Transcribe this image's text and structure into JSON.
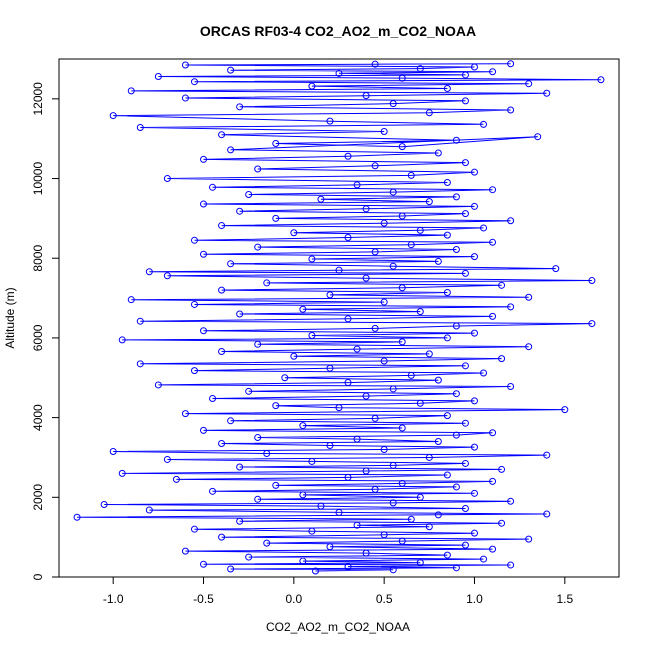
{
  "chart_data": {
    "type": "line",
    "title": "ORCAS RF03-4 CO2_AO2_m_CO2_NOAA",
    "xlabel": "CO2_AO2_m_CO2_NOAA",
    "ylabel": "Altitude (m)",
    "xlim": [
      -1.3,
      1.8
    ],
    "ylim": [
      0,
      13000
    ],
    "xticks": [
      -1.0,
      -0.5,
      0.0,
      0.5,
      1.0,
      1.5
    ],
    "xtick_labels": [
      "-1.0",
      "-0.5",
      "0.0",
      "0.5",
      "1.0",
      "1.5"
    ],
    "yticks": [
      0,
      2000,
      4000,
      6000,
      8000,
      10000,
      12000
    ],
    "ytick_labels": [
      "0",
      "2000",
      "4000",
      "6000",
      "8000",
      "10000",
      "12000"
    ],
    "grid": false,
    "marker": "open-circle",
    "series": [
      {
        "color": "#0000ff",
        "points": [
          [
            0.12,
            150
          ],
          [
            0.55,
            180
          ],
          [
            -0.35,
            200
          ],
          [
            0.9,
            230
          ],
          [
            0.3,
            260
          ],
          [
            1.2,
            300
          ],
          [
            -0.5,
            320
          ],
          [
            0.7,
            360
          ],
          [
            0.05,
            400
          ],
          [
            1.05,
            450
          ],
          [
            -0.25,
            500
          ],
          [
            0.85,
            550
          ],
          [
            0.4,
            600
          ],
          [
            -0.6,
            650
          ],
          [
            1.1,
            700
          ],
          [
            0.2,
            760
          ],
          [
            0.95,
            800
          ],
          [
            -0.15,
            850
          ],
          [
            0.6,
            900
          ],
          [
            1.3,
            950
          ],
          [
            -0.4,
            1000
          ],
          [
            0.5,
            1060
          ],
          [
            1.0,
            1100
          ],
          [
            0.1,
            1150
          ],
          [
            -0.55,
            1200
          ],
          [
            0.75,
            1260
          ],
          [
            0.35,
            1300
          ],
          [
            1.15,
            1350
          ],
          [
            -0.3,
            1400
          ],
          [
            0.65,
            1450
          ],
          [
            -1.2,
            1500
          ],
          [
            0.8,
            1560
          ],
          [
            1.4,
            1580
          ],
          [
            0.25,
            1620
          ],
          [
            -0.8,
            1680
          ],
          [
            0.95,
            1720
          ],
          [
            0.15,
            1780
          ],
          [
            -1.05,
            1820
          ],
          [
            0.55,
            1860
          ],
          [
            1.2,
            1900
          ],
          [
            -0.2,
            1950
          ],
          [
            0.7,
            2000
          ],
          [
            0.05,
            2060
          ],
          [
            1.0,
            2100
          ],
          [
            -0.45,
            2150
          ],
          [
            0.45,
            2200
          ],
          [
            0.9,
            2260
          ],
          [
            -0.1,
            2300
          ],
          [
            0.6,
            2350
          ],
          [
            1.1,
            2400
          ],
          [
            -0.65,
            2450
          ],
          [
            0.3,
            2500
          ],
          [
            0.85,
            2560
          ],
          [
            -0.95,
            2600
          ],
          [
            0.4,
            2660
          ],
          [
            1.15,
            2700
          ],
          [
            -0.3,
            2760
          ],
          [
            0.55,
            2800
          ],
          [
            0.95,
            2850
          ],
          [
            0.1,
            2900
          ],
          [
            -0.7,
            2950
          ],
          [
            0.75,
            3000
          ],
          [
            1.4,
            3060
          ],
          [
            -0.15,
            3100
          ],
          [
            -1.0,
            3150
          ],
          [
            0.5,
            3200
          ],
          [
            1.0,
            3260
          ],
          [
            0.2,
            3300
          ],
          [
            -0.4,
            3350
          ],
          [
            0.8,
            3400
          ],
          [
            0.35,
            3460
          ],
          [
            -0.2,
            3500
          ],
          [
            0.9,
            3560
          ],
          [
            1.1,
            3620
          ],
          [
            -0.5,
            3680
          ],
          [
            0.6,
            3740
          ],
          [
            0.05,
            3800
          ],
          [
            0.95,
            3860
          ],
          [
            -0.35,
            3920
          ],
          [
            0.45,
            3980
          ],
          [
            0.85,
            4050
          ],
          [
            -0.6,
            4100
          ],
          [
            1.5,
            4200
          ],
          [
            0.25,
            4250
          ],
          [
            -0.1,
            4300
          ],
          [
            0.7,
            4360
          ],
          [
            1.0,
            4420
          ],
          [
            -0.45,
            4480
          ],
          [
            0.4,
            4540
          ],
          [
            0.9,
            4600
          ],
          [
            -0.25,
            4660
          ],
          [
            0.55,
            4720
          ],
          [
            1.2,
            4780
          ],
          [
            -0.75,
            4820
          ],
          [
            0.3,
            4880
          ],
          [
            0.8,
            4940
          ],
          [
            -0.05,
            5000
          ],
          [
            0.65,
            5060
          ],
          [
            1.05,
            5120
          ],
          [
            -0.55,
            5180
          ],
          [
            0.2,
            5240
          ],
          [
            0.95,
            5300
          ],
          [
            -0.85,
            5350
          ],
          [
            0.5,
            5420
          ],
          [
            1.15,
            5480
          ],
          [
            0.0,
            5540
          ],
          [
            0.75,
            5600
          ],
          [
            -0.4,
            5660
          ],
          [
            0.35,
            5720
          ],
          [
            1.3,
            5780
          ],
          [
            -0.2,
            5840
          ],
          [
            0.6,
            5900
          ],
          [
            -0.95,
            5950
          ],
          [
            0.85,
            6000
          ],
          [
            0.1,
            6060
          ],
          [
            1.0,
            6120
          ],
          [
            -0.5,
            6180
          ],
          [
            0.45,
            6240
          ],
          [
            0.9,
            6300
          ],
          [
            1.65,
            6360
          ],
          [
            -0.85,
            6420
          ],
          [
            0.3,
            6480
          ],
          [
            1.1,
            6540
          ],
          [
            -0.3,
            6600
          ],
          [
            0.7,
            6660
          ],
          [
            0.05,
            6720
          ],
          [
            1.2,
            6780
          ],
          [
            -0.55,
            6840
          ],
          [
            0.5,
            6900
          ],
          [
            -0.9,
            6960
          ],
          [
            1.3,
            7020
          ],
          [
            0.2,
            7080
          ],
          [
            0.85,
            7140
          ],
          [
            -0.4,
            7200
          ],
          [
            0.6,
            7260
          ],
          [
            1.15,
            7320
          ],
          [
            -0.15,
            7380
          ],
          [
            1.65,
            7440
          ],
          [
            0.4,
            7500
          ],
          [
            -0.7,
            7560
          ],
          [
            0.95,
            7620
          ],
          [
            -0.8,
            7660
          ],
          [
            0.25,
            7700
          ],
          [
            1.45,
            7740
          ],
          [
            0.55,
            7800
          ],
          [
            -0.35,
            7860
          ],
          [
            0.8,
            7920
          ],
          [
            0.1,
            7980
          ],
          [
            1.0,
            8040
          ],
          [
            -0.5,
            8100
          ],
          [
            0.45,
            8160
          ],
          [
            0.9,
            8220
          ],
          [
            -0.2,
            8280
          ],
          [
            0.65,
            8340
          ],
          [
            1.1,
            8400
          ],
          [
            -0.55,
            8450
          ],
          [
            0.3,
            8520
          ],
          [
            0.85,
            8580
          ],
          [
            0.0,
            8640
          ],
          [
            0.7,
            8700
          ],
          [
            1.05,
            8760
          ],
          [
            -0.4,
            8820
          ],
          [
            0.5,
            8880
          ],
          [
            1.2,
            8940
          ],
          [
            -0.1,
            9000
          ],
          [
            0.6,
            9060
          ],
          [
            0.95,
            9120
          ],
          [
            -0.3,
            9180
          ],
          [
            0.4,
            9240
          ],
          [
            1.0,
            9300
          ],
          [
            -0.5,
            9360
          ],
          [
            0.75,
            9420
          ],
          [
            0.15,
            9480
          ],
          [
            0.9,
            9540
          ],
          [
            -0.25,
            9600
          ],
          [
            0.55,
            9660
          ],
          [
            1.1,
            9720
          ],
          [
            -0.45,
            9780
          ],
          [
            0.35,
            9840
          ],
          [
            0.85,
            9900
          ],
          [
            -0.7,
            10000
          ],
          [
            0.65,
            10080
          ],
          [
            1.0,
            10160
          ],
          [
            -0.2,
            10240
          ],
          [
            0.45,
            10320
          ],
          [
            0.95,
            10400
          ],
          [
            -0.5,
            10480
          ],
          [
            0.3,
            10560
          ],
          [
            0.8,
            10640
          ],
          [
            -0.35,
            10720
          ],
          [
            1.35,
            11050
          ],
          [
            0.6,
            10800
          ],
          [
            -0.1,
            10880
          ],
          [
            0.9,
            10960
          ],
          [
            -0.4,
            11100
          ],
          [
            0.5,
            11180
          ],
          [
            -0.85,
            11280
          ],
          [
            1.05,
            11360
          ],
          [
            0.2,
            11440
          ],
          [
            -1.0,
            11580
          ],
          [
            0.75,
            11650
          ],
          [
            1.2,
            11720
          ],
          [
            -0.3,
            11800
          ],
          [
            0.55,
            11880
          ],
          [
            0.95,
            11950
          ],
          [
            -0.6,
            12020
          ],
          [
            0.4,
            12080
          ],
          [
            1.4,
            12140
          ],
          [
            -0.9,
            12200
          ],
          [
            0.85,
            12260
          ],
          [
            0.1,
            12320
          ],
          [
            1.3,
            12380
          ],
          [
            -0.55,
            12430
          ],
          [
            1.7,
            12480
          ],
          [
            0.6,
            12520
          ],
          [
            -0.75,
            12560
          ],
          [
            0.95,
            12600
          ],
          [
            0.25,
            12640
          ],
          [
            1.1,
            12680
          ],
          [
            -0.35,
            12720
          ],
          [
            0.7,
            12760
          ],
          [
            1.0,
            12800
          ],
          [
            -0.6,
            12850
          ],
          [
            0.45,
            12870
          ],
          [
            1.2,
            12880
          ]
        ]
      }
    ]
  }
}
